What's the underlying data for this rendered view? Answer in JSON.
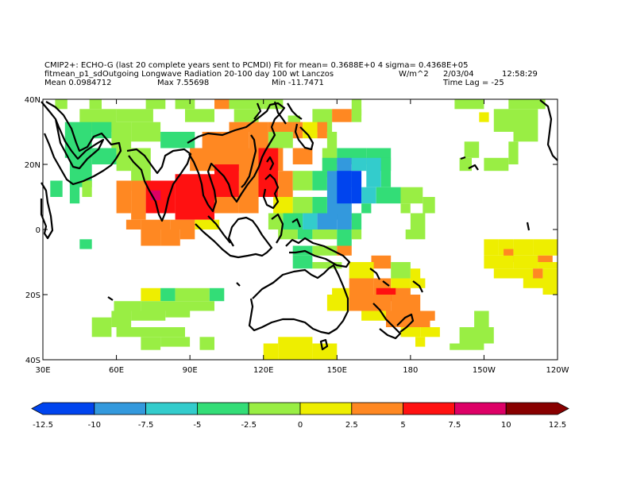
{
  "header": {
    "line1": "CMIP2+: ECHO-G (last 20 complete years sent to PCMDI) Fit for mean= 0.3688E+0 4 sigma= 0.4368E+05",
    "line2_left": "fitmean_p1_sdOutgoing Longwave Radiation 20-100 day 100 wt Lanczos",
    "units": "W/m^2",
    "date": "2/03/04",
    "time": "12:58:29",
    "mean": "Mean 0.0984712",
    "max": "Max 7.55698",
    "min": "Min -11.7471",
    "lag": "Time Lag = -25"
  },
  "map": {
    "lon_range": [
      30,
      240
    ],
    "lat_range": [
      -40,
      40
    ],
    "lat_ticks": [
      {
        "value": 40,
        "label": "40N"
      },
      {
        "value": 20,
        "label": "20N"
      },
      {
        "value": 0,
        "label": "0"
      },
      {
        "value": -20,
        "label": "20S"
      },
      {
        "value": -40,
        "label": "40S"
      }
    ],
    "lon_ticks": [
      {
        "value": 30,
        "label": "30E"
      },
      {
        "value": 60,
        "label": "60E"
      },
      {
        "value": 90,
        "label": "90E"
      },
      {
        "value": 120,
        "label": "120E"
      },
      {
        "value": 150,
        "label": "150E"
      },
      {
        "value": 180,
        "label": "180"
      },
      {
        "value": 210,
        "label": "150W"
      },
      {
        "value": 240,
        "label": "120W"
      }
    ]
  },
  "colorbar": {
    "levels": [
      "-12.5",
      "-10",
      "-7.5",
      "-5",
      "-2.5",
      "0",
      "2.5",
      "5",
      "7.5",
      "10",
      "12.5"
    ],
    "colors": [
      "#0044ee",
      "#3399dd",
      "#33cccc",
      "#33dd77",
      "#99ee44",
      "#eeee00",
      "#ff8822",
      "#ff1111",
      "#dd0066",
      "#880000"
    ]
  },
  "chart_data": {
    "type": "heatmap",
    "note_cells": "Each cell: [lon_west, lat_north, lon_east, lat_south, color_class_index]",
    "cells": [
      [
        35,
        40,
        40,
        37,
        4
      ],
      [
        49,
        40,
        54,
        37,
        4
      ],
      [
        72,
        40,
        80,
        37,
        4
      ],
      [
        84,
        40,
        92,
        37,
        4
      ],
      [
        106,
        40,
        120,
        37,
        4
      ],
      [
        120,
        40,
        128,
        37,
        4
      ],
      [
        100,
        40,
        106,
        37,
        6
      ],
      [
        156,
        40,
        160,
        35,
        4
      ],
      [
        198,
        40,
        210,
        37,
        4
      ],
      [
        220,
        40,
        235,
        37,
        4
      ],
      [
        45,
        37,
        60,
        30,
        4
      ],
      [
        60,
        37,
        75,
        33,
        4
      ],
      [
        88,
        37,
        100,
        33,
        4
      ],
      [
        108,
        37,
        118,
        33,
        4
      ],
      [
        130,
        35,
        135,
        30,
        4
      ],
      [
        140,
        37,
        148,
        30,
        4
      ],
      [
        148,
        37,
        156,
        33,
        6
      ],
      [
        156,
        37,
        160,
        33,
        4
      ],
      [
        208,
        36,
        212,
        33,
        5
      ],
      [
        214,
        37,
        222,
        30,
        4
      ],
      [
        222,
        37,
        232,
        27,
        4
      ],
      [
        39,
        33,
        50,
        22,
        3
      ],
      [
        50,
        33,
        58,
        28,
        3
      ],
      [
        58,
        33,
        66,
        25,
        4
      ],
      [
        66,
        33,
        78,
        27,
        4
      ],
      [
        78,
        30,
        92,
        25,
        3
      ],
      [
        106,
        33,
        122,
        30,
        6
      ],
      [
        122,
        33,
        132,
        30,
        6
      ],
      [
        132,
        33,
        136,
        28,
        6
      ],
      [
        136,
        33,
        142,
        28,
        5
      ],
      [
        142,
        33,
        146,
        28,
        6
      ],
      [
        146,
        30,
        150,
        25,
        4
      ],
      [
        95,
        30,
        114,
        25,
        6
      ],
      [
        114,
        30,
        122,
        25,
        6
      ],
      [
        122,
        30,
        132,
        25,
        4
      ],
      [
        41,
        25,
        50,
        13,
        3
      ],
      [
        50,
        25,
        60,
        20,
        3
      ],
      [
        60,
        25,
        66,
        18,
        4
      ],
      [
        66,
        25,
        74,
        15,
        4
      ],
      [
        90,
        25,
        120,
        18,
        6
      ],
      [
        120,
        25,
        128,
        18,
        6
      ],
      [
        132,
        25,
        140,
        20,
        6
      ],
      [
        144,
        25,
        150,
        16,
        4
      ],
      [
        150,
        25,
        162,
        20,
        3
      ],
      [
        162,
        25,
        172,
        18,
        3
      ],
      [
        200,
        22,
        205,
        18,
        4
      ],
      [
        202,
        27,
        208,
        22,
        4
      ],
      [
        210,
        22,
        220,
        18,
        4
      ],
      [
        220,
        27,
        224,
        20,
        4
      ],
      [
        144,
        22,
        150,
        18,
        3
      ],
      [
        150,
        22,
        156,
        13,
        1
      ],
      [
        156,
        22,
        162,
        18,
        2
      ],
      [
        162,
        22,
        168,
        13,
        2
      ],
      [
        168,
        22,
        172,
        13,
        3
      ],
      [
        33,
        15,
        38,
        10,
        3
      ],
      [
        41,
        15,
        45,
        8,
        3
      ],
      [
        46,
        15,
        50,
        10,
        4
      ],
      [
        66,
        15,
        72,
        12,
        4
      ],
      [
        60,
        15,
        66,
        5,
        6
      ],
      [
        66,
        15,
        72,
        3,
        6
      ],
      [
        72,
        15,
        84,
        5,
        7
      ],
      [
        84,
        17,
        100,
        3,
        7
      ],
      [
        100,
        20,
        110,
        10,
        7
      ],
      [
        110,
        20,
        118,
        10,
        6
      ],
      [
        118,
        25,
        126,
        10,
        7
      ],
      [
        126,
        18,
        132,
        10,
        6
      ],
      [
        74,
        12,
        78,
        9,
        8
      ],
      [
        100,
        10,
        110,
        5,
        6
      ],
      [
        110,
        10,
        118,
        5,
        6
      ],
      [
        132,
        18,
        140,
        12,
        4
      ],
      [
        140,
        18,
        146,
        12,
        3
      ],
      [
        146,
        18,
        156,
        3,
        1
      ],
      [
        156,
        18,
        160,
        8,
        0
      ],
      [
        150,
        18,
        156,
        8,
        0
      ],
      [
        160,
        13,
        166,
        8,
        2
      ],
      [
        166,
        13,
        176,
        8,
        3
      ],
      [
        176,
        13,
        185,
        8,
        4
      ],
      [
        124,
        10,
        132,
        5,
        5
      ],
      [
        132,
        10,
        140,
        5,
        4
      ],
      [
        140,
        10,
        146,
        5,
        3
      ],
      [
        160,
        8,
        164,
        5,
        3
      ],
      [
        176,
        8,
        180,
        5,
        4
      ],
      [
        185,
        10,
        190,
        5,
        4
      ],
      [
        64,
        3,
        70,
        0,
        6
      ],
      [
        70,
        3,
        82,
        0,
        6
      ],
      [
        82,
        3,
        92,
        0,
        6
      ],
      [
        92,
        3,
        102,
        0,
        5
      ],
      [
        122,
        5,
        128,
        0,
        4
      ],
      [
        128,
        5,
        136,
        0,
        3
      ],
      [
        136,
        5,
        142,
        0,
        2
      ],
      [
        142,
        5,
        150,
        0,
        1
      ],
      [
        150,
        5,
        156,
        0,
        1
      ],
      [
        156,
        5,
        160,
        0,
        3
      ],
      [
        180,
        5,
        186,
        0,
        4
      ],
      [
        70,
        0,
        78,
        -5,
        6
      ],
      [
        78,
        0,
        86,
        -5,
        6
      ],
      [
        86,
        0,
        92,
        -3,
        6
      ],
      [
        45,
        -3,
        50,
        -6,
        3
      ],
      [
        126,
        0,
        134,
        -3,
        4
      ],
      [
        134,
        0,
        140,
        -3,
        3
      ],
      [
        140,
        0,
        150,
        -3,
        4
      ],
      [
        150,
        0,
        156,
        -5,
        3
      ],
      [
        156,
        0,
        160,
        -3,
        4
      ],
      [
        178,
        0,
        186,
        -3,
        4
      ],
      [
        132,
        -5,
        140,
        -8,
        3
      ],
      [
        140,
        -5,
        150,
        -8,
        4
      ],
      [
        150,
        -5,
        156,
        -8,
        6
      ],
      [
        132,
        -8,
        140,
        -12,
        3
      ],
      [
        140,
        -10,
        152,
        -12,
        4
      ],
      [
        164,
        -8,
        172,
        -12,
        6
      ],
      [
        172,
        -10,
        180,
        -15,
        4
      ],
      [
        180,
        -12,
        184,
        -15,
        5
      ],
      [
        155,
        -10,
        165,
        -15,
        5
      ],
      [
        155,
        -15,
        165,
        -20,
        6
      ],
      [
        165,
        -15,
        172,
        -20,
        6
      ],
      [
        172,
        -15,
        180,
        -20,
        5
      ],
      [
        180,
        -15,
        186,
        -18,
        5
      ],
      [
        148,
        -18,
        155,
        -20,
        5
      ],
      [
        166,
        -18,
        174,
        -22,
        7
      ],
      [
        174,
        -18,
        180,
        -22,
        6
      ],
      [
        146,
        -20,
        155,
        -25,
        5
      ],
      [
        155,
        -20,
        172,
        -25,
        6
      ],
      [
        172,
        -20,
        184,
        -25,
        6
      ],
      [
        160,
        -25,
        176,
        -28,
        5
      ],
      [
        170,
        -25,
        188,
        -30,
        6
      ],
      [
        188,
        -25,
        190,
        -28,
        6
      ],
      [
        176,
        -30,
        184,
        -33,
        5
      ],
      [
        184,
        -30,
        192,
        -33,
        5
      ],
      [
        182,
        -33,
        186,
        -36,
        5
      ],
      [
        210,
        -3,
        216,
        -8,
        5
      ],
      [
        216,
        -3,
        222,
        -8,
        5
      ],
      [
        222,
        -3,
        230,
        -8,
        5
      ],
      [
        230,
        -3,
        240,
        -8,
        5
      ],
      [
        218,
        -6,
        222,
        -10,
        6
      ],
      [
        210,
        -8,
        222,
        -12,
        5
      ],
      [
        222,
        -8,
        232,
        -12,
        5
      ],
      [
        232,
        -8,
        238,
        -10,
        6
      ],
      [
        232,
        -10,
        240,
        -12,
        5
      ],
      [
        214,
        -12,
        230,
        -15,
        5
      ],
      [
        230,
        -12,
        234,
        -15,
        6
      ],
      [
        234,
        -12,
        240,
        -15,
        5
      ],
      [
        226,
        -15,
        234,
        -18,
        5
      ],
      [
        234,
        -15,
        240,
        -20,
        5
      ],
      [
        70,
        -18,
        78,
        -22,
        5
      ],
      [
        78,
        -18,
        84,
        -22,
        3
      ],
      [
        84,
        -18,
        98,
        -22,
        4
      ],
      [
        98,
        -18,
        104,
        -22,
        3
      ],
      [
        70,
        -22,
        100,
        -25,
        4
      ],
      [
        66,
        -25,
        80,
        -28,
        4
      ],
      [
        80,
        -25,
        90,
        -27,
        4
      ],
      [
        59,
        -22,
        70,
        -25,
        4
      ],
      [
        58,
        -25,
        66,
        -30,
        4
      ],
      [
        50,
        -27,
        58,
        -33,
        4
      ],
      [
        60,
        -30,
        88,
        -33,
        4
      ],
      [
        70,
        -33,
        78,
        -37,
        4
      ],
      [
        78,
        -33,
        90,
        -36,
        4
      ],
      [
        94,
        -33,
        100,
        -37,
        4
      ],
      [
        120,
        -35,
        126,
        -40,
        5
      ],
      [
        126,
        -33,
        140,
        -40,
        5
      ],
      [
        140,
        -35,
        150,
        -40,
        5
      ],
      [
        206,
        -25,
        212,
        -30,
        4
      ],
      [
        200,
        -30,
        214,
        -35,
        4
      ],
      [
        196,
        -35,
        210,
        -37,
        4
      ]
    ]
  }
}
